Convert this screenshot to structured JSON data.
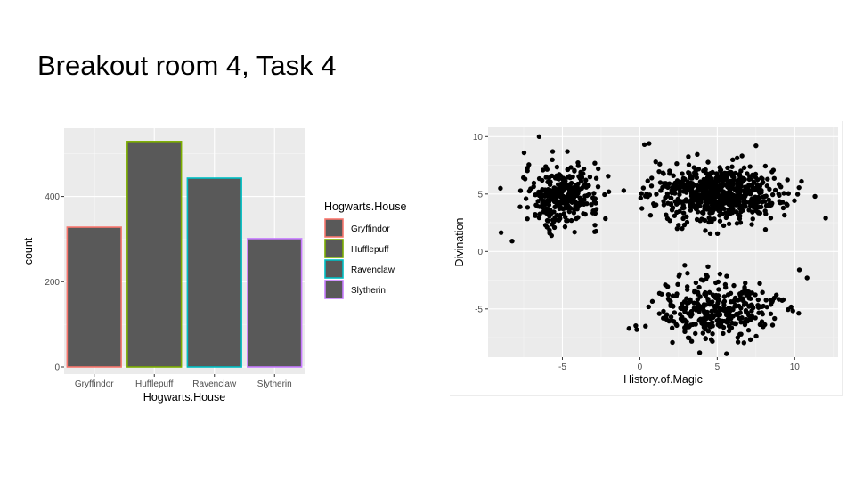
{
  "slide": {
    "title": "Breakout room 4, Task 4"
  },
  "chart_data": [
    {
      "type": "bar",
      "categories": [
        "Gryffindor",
        "Hufflepuff",
        "Ravenclaw",
        "Slytherin"
      ],
      "values": [
        328,
        529,
        443,
        301
      ],
      "fill": "#595959",
      "outline_colors": [
        "#F8766D",
        "#7CAE00",
        "#00BFC4",
        "#C77CFF"
      ],
      "xlabel": "Hogwarts.House",
      "ylabel": "count",
      "ylim": [
        0,
        560
      ],
      "yticks": [
        0,
        200,
        400
      ],
      "grid": true,
      "panel_background": "#EBEBEB",
      "legend": {
        "title": "Hogwarts.House",
        "placement": "right",
        "entries": [
          "Gryffindor",
          "Hufflepuff",
          "Ravenclaw",
          "Slytherin"
        ]
      }
    },
    {
      "type": "scatter",
      "xlabel": "History.of.Magic",
      "ylabel": "Divination",
      "xlim": [
        -9.8,
        12.8
      ],
      "ylim": [
        -9.2,
        10.8
      ],
      "xticks": [
        -5,
        0,
        5,
        10
      ],
      "yticks": [
        -5,
        0,
        5,
        10
      ],
      "grid": true,
      "panel_background": "#EBEBEB",
      "point_color": "#000000",
      "clusters": [
        {
          "x_mean": -5.0,
          "y_mean": 4.8,
          "x_sd": 1.2,
          "y_sd": 1.3,
          "n": 320
        },
        {
          "x_mean": 5.0,
          "y_mean": 5.0,
          "x_sd": 2.0,
          "y_sd": 1.15,
          "n": 680
        },
        {
          "x_mean": 5.0,
          "y_mean": -5.0,
          "x_sd": 1.8,
          "y_sd": 1.3,
          "n": 340
        }
      ],
      "outliers": [
        {
          "x": -6.5,
          "y": 10.0
        },
        {
          "x": 0.3,
          "y": 9.3
        },
        {
          "x": 0.6,
          "y": 9.4
        },
        {
          "x": 7.5,
          "y": 9.2
        },
        {
          "x": 12.0,
          "y": 2.9
        },
        {
          "x": 10.8,
          "y": -2.3
        },
        {
          "x": 2.9,
          "y": -1.2
        },
        {
          "x": -2.0,
          "y": 5.2
        },
        {
          "x": -9.0,
          "y": 5.5
        },
        {
          "x": -0.7,
          "y": -6.7
        },
        {
          "x": -0.2,
          "y": -6.8
        },
        {
          "x": 10.3,
          "y": -1.6
        }
      ]
    }
  ]
}
